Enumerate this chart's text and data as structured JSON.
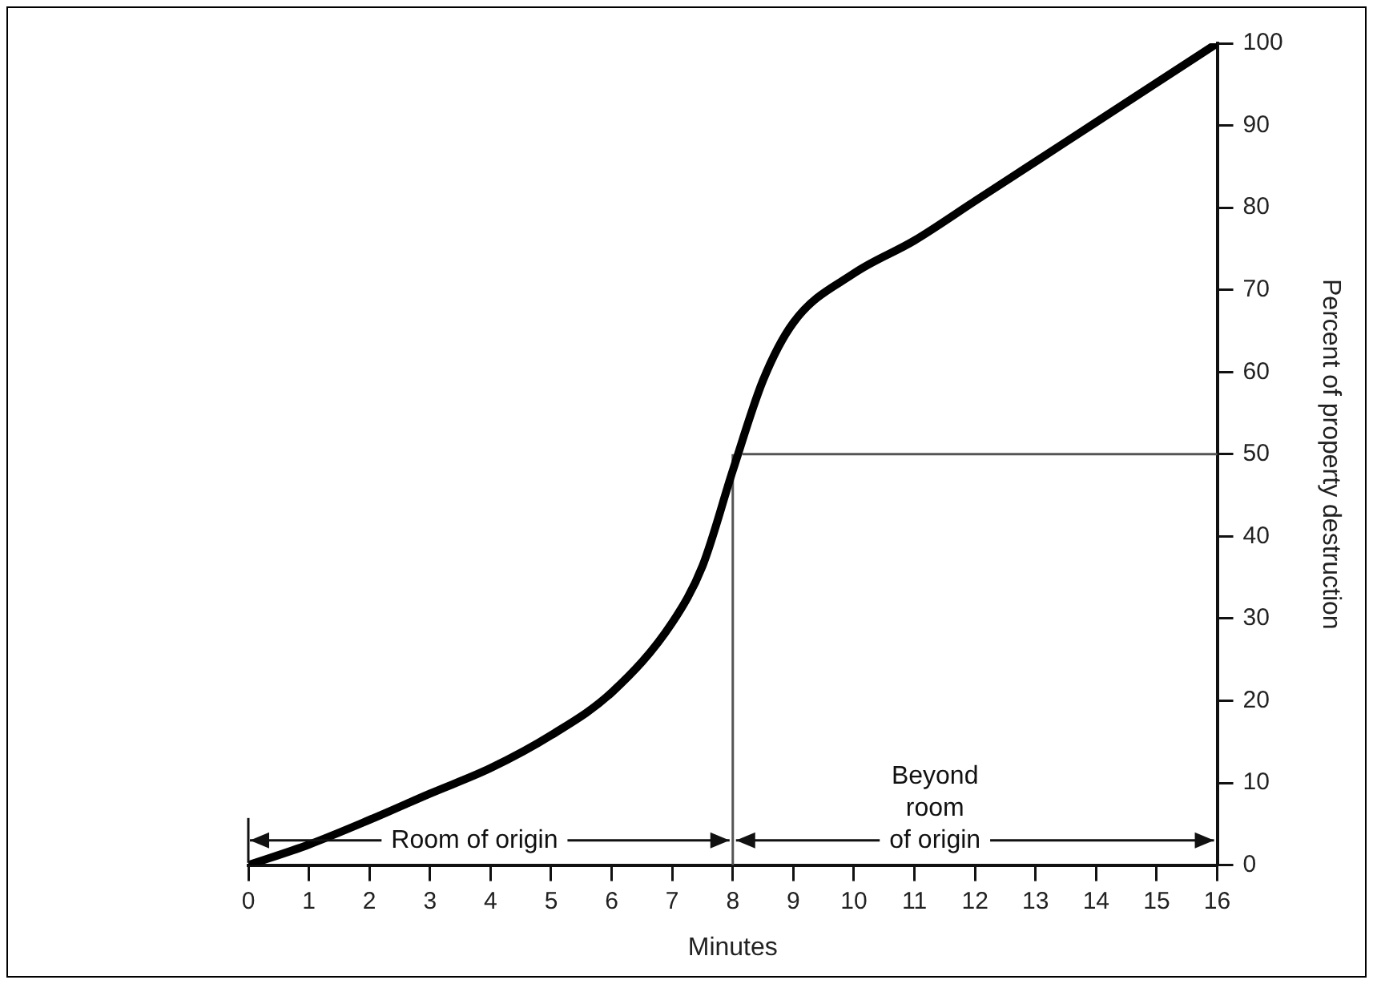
{
  "chart_data": {
    "type": "line",
    "xlabel": "Minutes",
    "ylabel": "Percent of property destruction",
    "x": [
      0,
      1,
      2,
      3,
      4,
      5,
      6,
      7,
      7.5,
      8,
      8.5,
      9,
      10,
      11,
      12,
      13,
      14,
      15,
      16
    ],
    "series": [
      {
        "color": "#000000",
        "values": [
          0,
          2.5,
          5.5,
          8.7,
          11.8,
          15.8,
          21,
          29.5,
          36.4,
          48,
          59,
          66,
          72,
          76,
          80.8,
          85.6,
          90.4,
          95.2,
          100
        ]
      }
    ],
    "xlim": [
      0,
      16
    ],
    "xticks": [
      0,
      1,
      2,
      3,
      4,
      5,
      6,
      7,
      8,
      9,
      10,
      11,
      12,
      13,
      14,
      15,
      16
    ],
    "ylim": [
      0,
      100
    ],
    "yticks": [
      0,
      10,
      20,
      30,
      40,
      50,
      60,
      70,
      80,
      90,
      100
    ],
    "grid": false,
    "legend": false,
    "marker": "none",
    "line_style": "solid",
    "ref_lines": [
      {
        "axis": "x",
        "value": 8
      },
      {
        "axis": "y",
        "value": 50
      }
    ],
    "annotations": [
      {
        "text": "Room of origin",
        "x": 8,
        "y": 3
      },
      {
        "text": "Beyond\nroom\nof origin",
        "x": 8,
        "y": 3
      }
    ]
  }
}
